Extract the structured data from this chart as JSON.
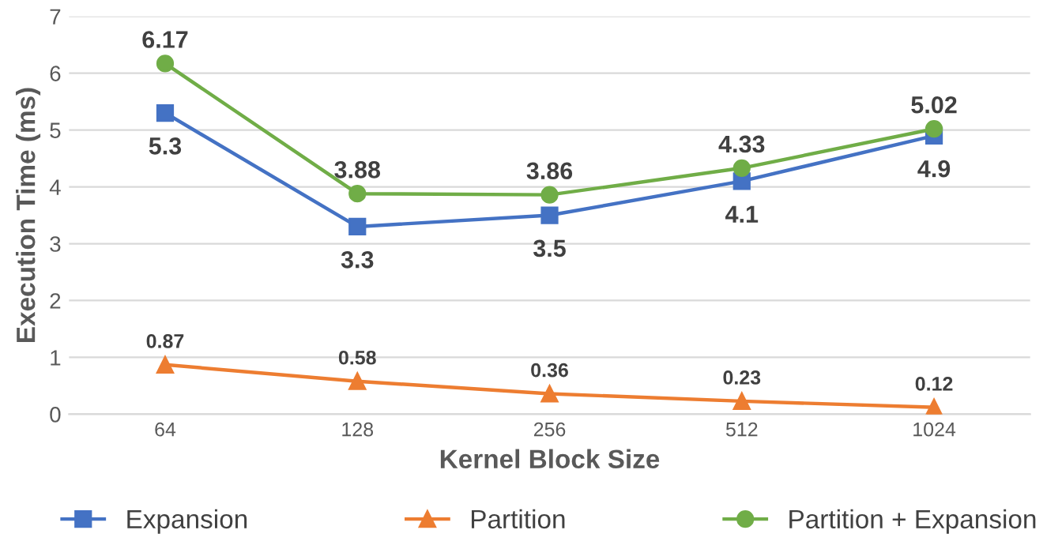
{
  "chart_data": {
    "type": "line",
    "xlabel": "Kernel Block Size",
    "ylabel": "Execution Time (ms)",
    "categories": [
      "64",
      "128",
      "256",
      "512",
      "1024"
    ],
    "series": [
      {
        "name": "Expansion",
        "color": "#4472c4",
        "marker": "square",
        "values": [
          5.3,
          3.3,
          3.5,
          4.1,
          4.9
        ]
      },
      {
        "name": "Partition",
        "color": "#ed7d31",
        "marker": "triangle",
        "values": [
          0.87,
          0.58,
          0.36,
          0.23,
          0.12
        ]
      },
      {
        "name": "Partition + Expansion",
        "color": "#70ad47",
        "marker": "circle",
        "values": [
          6.17,
          3.88,
          3.86,
          4.33,
          5.02
        ]
      }
    ],
    "ylim": [
      0,
      7
    ],
    "yticks": [
      0,
      1,
      2,
      3,
      4,
      5,
      6,
      7
    ],
    "grid": "y",
    "legend": "bottom",
    "data_labels": true
  }
}
